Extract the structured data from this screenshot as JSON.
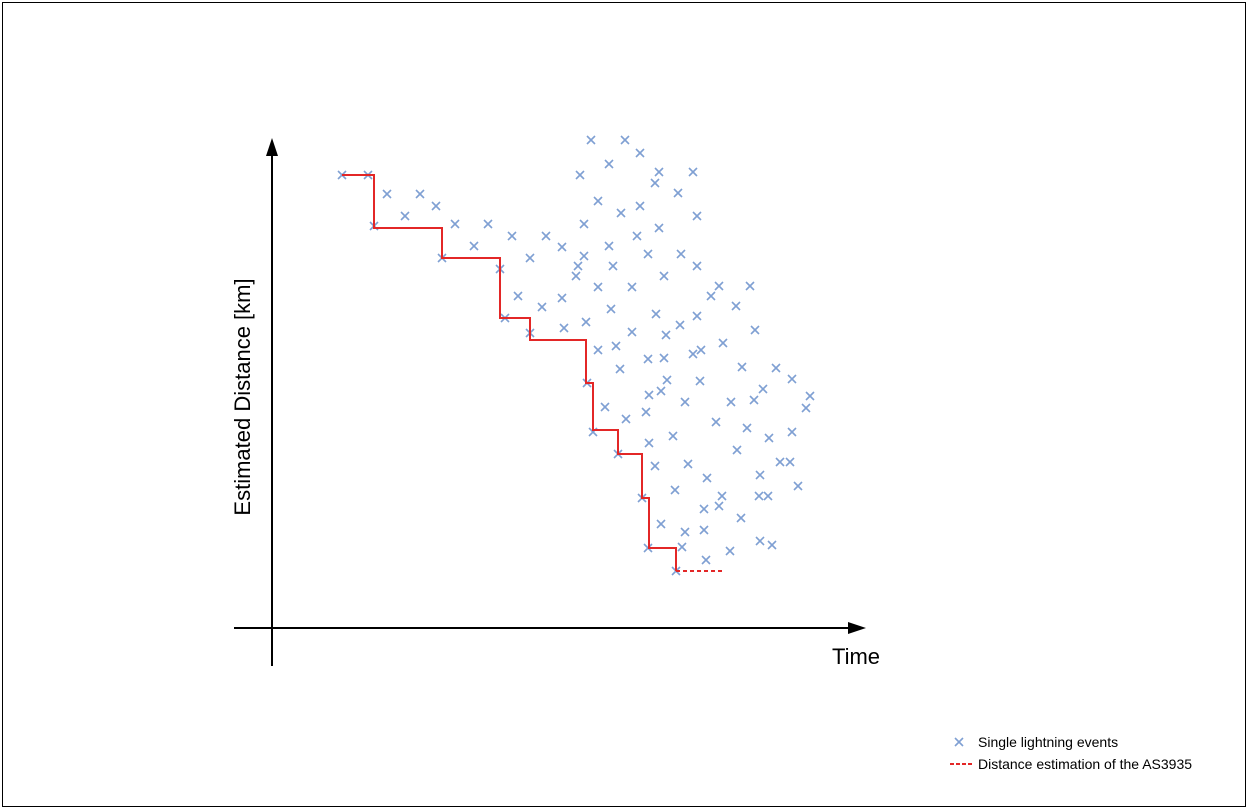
{
  "chart_data": {
    "type": "scatter",
    "xlabel": "Time",
    "ylabel": "Estimated Distance [km]",
    "x_ticks": false,
    "y_ticks": false,
    "grid": false,
    "legend_position": "bottom-right",
    "colors": {
      "events": "#7fa0d3",
      "estimation": "#e32727",
      "axes": "#000000"
    },
    "series": [
      {
        "name": "Single lightning events",
        "marker": "x",
        "points": [
          [
            342,
            175
          ],
          [
            368,
            175
          ],
          [
            387,
            194
          ],
          [
            420,
            194
          ],
          [
            405,
            216
          ],
          [
            436,
            206
          ],
          [
            455,
            224
          ],
          [
            488,
            224
          ],
          [
            374,
            226
          ],
          [
            474,
            246
          ],
          [
            512,
            236
          ],
          [
            546,
            236
          ],
          [
            562,
            247
          ],
          [
            530,
            258
          ],
          [
            442,
            258
          ],
          [
            500,
            269
          ],
          [
            591,
            140
          ],
          [
            625,
            140
          ],
          [
            640,
            153
          ],
          [
            609,
            164
          ],
          [
            580,
            175
          ],
          [
            659,
            172
          ],
          [
            655,
            183
          ],
          [
            693,
            172
          ],
          [
            678,
            193
          ],
          [
            598,
            201
          ],
          [
            621,
            213
          ],
          [
            640,
            206
          ],
          [
            584,
            224
          ],
          [
            659,
            228
          ],
          [
            697,
            216
          ],
          [
            637,
            236
          ],
          [
            609,
            246
          ],
          [
            584,
            256
          ],
          [
            578,
            266
          ],
          [
            576,
            276
          ],
          [
            613,
            266
          ],
          [
            648,
            254
          ],
          [
            681,
            254
          ],
          [
            697,
            266
          ],
          [
            664,
            276
          ],
          [
            598,
            287
          ],
          [
            632,
            287
          ],
          [
            518,
            296
          ],
          [
            542,
            307
          ],
          [
            562,
            298
          ],
          [
            505,
            318
          ],
          [
            530,
            333
          ],
          [
            564,
            328
          ],
          [
            586,
            322
          ],
          [
            611,
            309
          ],
          [
            656,
            314
          ],
          [
            680,
            325
          ],
          [
            697,
            316
          ],
          [
            719,
            286
          ],
          [
            711,
            296
          ],
          [
            736,
            306
          ],
          [
            750,
            286
          ],
          [
            755,
            330
          ],
          [
            723,
            343
          ],
          [
            701,
            350
          ],
          [
            666,
            335
          ],
          [
            632,
            332
          ],
          [
            616,
            346
          ],
          [
            598,
            350
          ],
          [
            648,
            359
          ],
          [
            664,
            358
          ],
          [
            693,
            354
          ],
          [
            587,
            383
          ],
          [
            620,
            369
          ],
          [
            667,
            380
          ],
          [
            661,
            391
          ],
          [
            700,
            381
          ],
          [
            742,
            367
          ],
          [
            776,
            368
          ],
          [
            792,
            379
          ],
          [
            763,
            389
          ],
          [
            731,
            402
          ],
          [
            685,
            402
          ],
          [
            649,
            395
          ],
          [
            605,
            407
          ],
          [
            626,
            419
          ],
          [
            646,
            412
          ],
          [
            754,
            400
          ],
          [
            810,
            396
          ],
          [
            806,
            408
          ],
          [
            747,
            428
          ],
          [
            716,
            422
          ],
          [
            593,
            432
          ],
          [
            673,
            436
          ],
          [
            649,
            443
          ],
          [
            618,
            454
          ],
          [
            655,
            466
          ],
          [
            688,
            464
          ],
          [
            707,
            478
          ],
          [
            737,
            450
          ],
          [
            769,
            438
          ],
          [
            792,
            432
          ],
          [
            780,
            462
          ],
          [
            790,
            462
          ],
          [
            760,
            475
          ],
          [
            798,
            486
          ],
          [
            759,
            496
          ],
          [
            768,
            496
          ],
          [
            722,
            496
          ],
          [
            719,
            506
          ],
          [
            642,
            498
          ],
          [
            675,
            490
          ],
          [
            704,
            509
          ],
          [
            661,
            524
          ],
          [
            685,
            532
          ],
          [
            741,
            518
          ],
          [
            648,
            548
          ],
          [
            682,
            547
          ],
          [
            704,
            530
          ],
          [
            676,
            571
          ],
          [
            706,
            560
          ],
          [
            730,
            551
          ],
          [
            760,
            541
          ],
          [
            772,
            545
          ]
        ]
      },
      {
        "name": "Distance estimation of the AS3935",
        "line": "step",
        "points": [
          [
            342,
            175
          ],
          [
            374,
            175
          ],
          [
            374,
            228
          ],
          [
            442,
            228
          ],
          [
            442,
            258
          ],
          [
            500,
            258
          ],
          [
            500,
            318
          ],
          [
            530,
            318
          ],
          [
            530,
            340
          ],
          [
            586,
            340
          ],
          [
            586,
            383
          ],
          [
            593,
            383
          ],
          [
            593,
            430
          ],
          [
            618,
            430
          ],
          [
            618,
            454
          ],
          [
            642,
            454
          ],
          [
            642,
            498
          ],
          [
            649,
            498
          ],
          [
            649,
            548
          ],
          [
            676,
            548
          ],
          [
            676,
            571
          ]
        ],
        "dashed_extension": [
          [
            676,
            571
          ],
          [
            724,
            571
          ]
        ]
      }
    ]
  }
}
